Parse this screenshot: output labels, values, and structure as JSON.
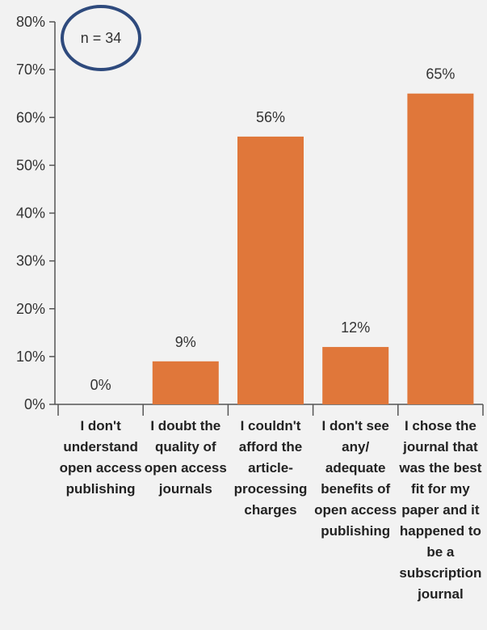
{
  "chart_data": {
    "type": "bar",
    "title": "",
    "xlabel": "",
    "ylabel": "",
    "ylim": [
      0,
      80
    ],
    "y_ticks": [
      0,
      10,
      20,
      30,
      40,
      50,
      60,
      70,
      80
    ],
    "y_tick_labels": [
      "0%",
      "10%",
      "20%",
      "30%",
      "40%",
      "50%",
      "60%",
      "70%",
      "80%"
    ],
    "grid": false,
    "legend": "none",
    "annotation": "n = 34",
    "categories": [
      [
        "I don't",
        "understand",
        "open access",
        "publishing"
      ],
      [
        "I doubt the",
        "quality of",
        "open access",
        "journals"
      ],
      [
        "I couldn't",
        "afford the",
        "article-",
        "processing",
        "charges"
      ],
      [
        "I don't see",
        "any/",
        "adequate",
        "benefits of",
        "open access",
        "publishing"
      ],
      [
        "I chose the",
        "journal that",
        "was the best",
        "fit for my",
        "paper and it",
        "happened to",
        "be a",
        "subscription",
        "journal"
      ]
    ],
    "values": [
      0,
      9,
      56,
      12,
      65
    ],
    "value_labels": [
      "0%",
      "9%",
      "56%",
      "12%",
      "65%"
    ],
    "colors": {
      "bar": "#e0773a",
      "axis": "#555555",
      "annotation_circle": "#2e4a7d",
      "background": "#f2f2f2"
    }
  }
}
